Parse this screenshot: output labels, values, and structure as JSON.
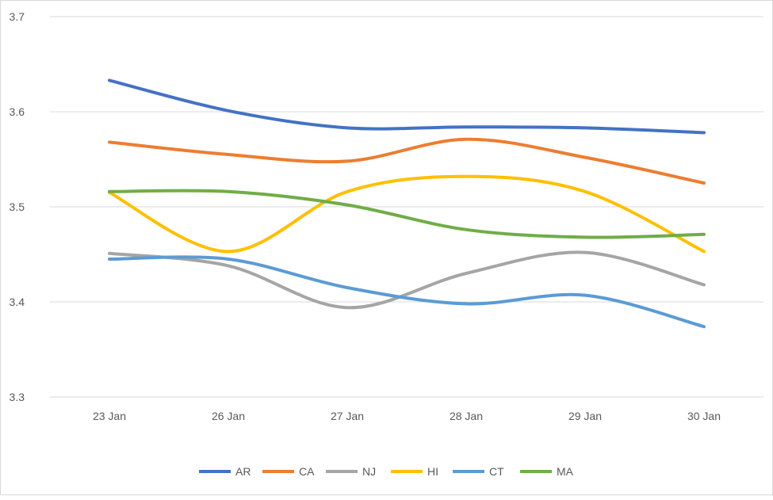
{
  "chart_data": {
    "type": "line",
    "title": "",
    "xlabel": "",
    "ylabel": "",
    "categories": [
      "23 Jan",
      "26 Jan",
      "27 Jan",
      "28 Jan",
      "29 Jan",
      "30 Jan"
    ],
    "ylim": [
      3.3,
      3.7
    ],
    "yticks": [
      "3.3",
      "3.4",
      "3.5",
      "3.6",
      "3.7"
    ],
    "grid": true,
    "smooth": true,
    "legend_position": "bottom",
    "series": [
      {
        "name": "AR",
        "color": "#4472C4",
        "values": [
          3.633,
          3.601,
          3.583,
          3.584,
          3.583,
          3.578
        ]
      },
      {
        "name": "CA",
        "color": "#ED7D31",
        "values": [
          3.568,
          3.555,
          3.548,
          3.571,
          3.552,
          3.525
        ]
      },
      {
        "name": "NJ",
        "color": "#A5A5A5",
        "values": [
          3.451,
          3.438,
          3.394,
          3.43,
          3.452,
          3.418
        ]
      },
      {
        "name": "HI",
        "color": "#FFC000",
        "values": [
          3.515,
          3.453,
          3.516,
          3.532,
          3.516,
          3.453
        ]
      },
      {
        "name": "CT",
        "color": "#5B9BD5",
        "values": [
          3.445,
          3.445,
          3.415,
          3.398,
          3.407,
          3.374
        ]
      },
      {
        "name": "MA",
        "color": "#70AD47",
        "values": [
          3.516,
          3.516,
          3.502,
          3.476,
          3.468,
          3.471
        ]
      }
    ]
  }
}
